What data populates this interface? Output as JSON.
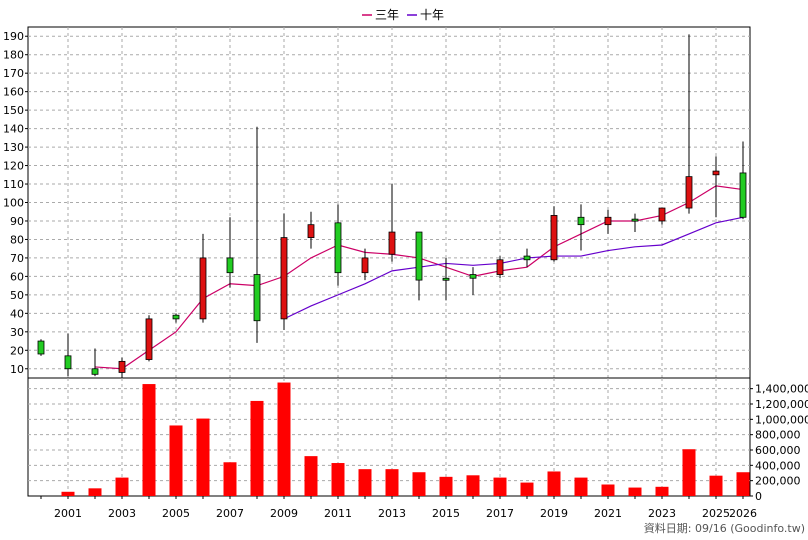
{
  "legend": [
    {
      "label": "三年",
      "color": "#cc0066"
    },
    {
      "label": "十年",
      "color": "#6600cc"
    }
  ],
  "credit": "資料日期: 09/16  (Goodinfo.tw)",
  "chart_data": {
    "type": "candlestick",
    "title": "",
    "x_tick_labels": [
      "2001",
      "2003",
      "2005",
      "2007",
      "2009",
      "2011",
      "2013",
      "2015",
      "2017",
      "2019",
      "2021",
      "2023",
      "2025",
      "2026"
    ],
    "price_axis": {
      "ylim": [
        5,
        195
      ],
      "ticks": [
        10,
        20,
        30,
        40,
        50,
        60,
        70,
        80,
        90,
        100,
        110,
        120,
        130,
        140,
        150,
        160,
        170,
        180,
        190
      ]
    },
    "volume_axis": {
      "ylim": [
        0,
        1500000
      ],
      "ticks": [
        0,
        200000,
        400000,
        600000,
        800000,
        1000000,
        1200000,
        1400000
      ],
      "tick_labels": [
        "0",
        "200,000",
        "400,000",
        "600,000",
        "800,000",
        "1,000,000",
        "1,200,000",
        "1,400,000"
      ]
    },
    "up_color": "#22cc22",
    "down_color": "#dd1111",
    "candles": [
      {
        "year": 2000,
        "open": 18,
        "close": 25,
        "high": 26,
        "low": 17
      },
      {
        "year": 2001,
        "open": 10,
        "close": 17,
        "high": 29,
        "low": 6
      },
      {
        "year": 2002,
        "open": 7,
        "close": 10,
        "high": 21,
        "low": 6
      },
      {
        "year": 2003,
        "open": 14,
        "close": 8,
        "high": 16,
        "low": 5
      },
      {
        "year": 2004,
        "open": 37,
        "close": 15,
        "high": 39,
        "low": 14
      },
      {
        "year": 2005,
        "open": 37,
        "close": 39,
        "high": 40,
        "low": 35
      },
      {
        "year": 2006,
        "open": 70,
        "close": 37,
        "high": 83,
        "low": 35
      },
      {
        "year": 2007,
        "open": 62,
        "close": 70,
        "high": 92,
        "low": 54
      },
      {
        "year": 2008,
        "open": 36,
        "close": 61,
        "high": 141,
        "low": 24
      },
      {
        "year": 2009,
        "open": 81,
        "close": 37,
        "high": 94,
        "low": 31
      },
      {
        "year": 2010,
        "open": 88,
        "close": 81,
        "high": 95,
        "low": 75
      },
      {
        "year": 2011,
        "open": 62,
        "close": 89,
        "high": 99,
        "low": 55
      },
      {
        "year": 2012,
        "open": 70,
        "close": 62,
        "high": 75,
        "low": 58
      },
      {
        "year": 2013,
        "open": 84,
        "close": 72,
        "high": 110,
        "low": 68
      },
      {
        "year": 2014,
        "open": 58,
        "close": 84,
        "high": 84,
        "low": 47
      },
      {
        "year": 2015,
        "open": 58,
        "close": 59,
        "high": 70,
        "low": 47
      },
      {
        "year": 2016,
        "open": 59,
        "close": 61,
        "high": 65,
        "low": 50
      },
      {
        "year": 2017,
        "open": 69,
        "close": 61,
        "high": 71,
        "low": 59
      },
      {
        "year": 2018,
        "open": 69,
        "close": 71,
        "high": 75,
        "low": 65
      },
      {
        "year": 2019,
        "open": 93,
        "close": 69,
        "high": 98,
        "low": 68
      },
      {
        "year": 2020,
        "open": 88,
        "close": 92,
        "high": 99,
        "low": 74
      },
      {
        "year": 2021,
        "open": 92,
        "close": 88,
        "high": 96,
        "low": 83
      },
      {
        "year": 2022,
        "open": 90,
        "close": 91,
        "high": 94,
        "low": 84
      },
      {
        "year": 2023,
        "open": 97,
        "close": 90,
        "high": 97,
        "low": 88
      },
      {
        "year": 2024,
        "open": 114,
        "close": 97,
        "high": 191,
        "low": 94
      },
      {
        "year": 2025,
        "open": 117,
        "close": 115,
        "high": 125,
        "low": 92
      },
      {
        "year": 2026,
        "open": 92,
        "close": 116,
        "high": 133,
        "low": 91
      }
    ],
    "series": [
      {
        "name": "三年",
        "color": "#cc0066",
        "points": [
          [
            2002,
            11
          ],
          [
            2003,
            10
          ],
          [
            2004,
            20
          ],
          [
            2005,
            30
          ],
          [
            2006,
            48
          ],
          [
            2007,
            56
          ],
          [
            2008,
            55
          ],
          [
            2009,
            60
          ],
          [
            2010,
            70
          ],
          [
            2011,
            77
          ],
          [
            2012,
            73
          ],
          [
            2013,
            72
          ],
          [
            2014,
            70
          ],
          [
            2015,
            65
          ],
          [
            2016,
            60
          ],
          [
            2017,
            63
          ],
          [
            2018,
            65
          ],
          [
            2019,
            76
          ],
          [
            2020,
            83
          ],
          [
            2021,
            90
          ],
          [
            2022,
            90
          ],
          [
            2023,
            93
          ],
          [
            2024,
            100
          ],
          [
            2025,
            109
          ],
          [
            2026,
            107
          ]
        ]
      },
      {
        "name": "十年",
        "color": "#6600cc",
        "points": [
          [
            2009,
            37
          ],
          [
            2010,
            44
          ],
          [
            2011,
            50
          ],
          [
            2012,
            56
          ],
          [
            2013,
            63
          ],
          [
            2014,
            65
          ],
          [
            2015,
            67
          ],
          [
            2016,
            66
          ],
          [
            2017,
            67
          ],
          [
            2018,
            70
          ],
          [
            2019,
            71
          ],
          [
            2020,
            71
          ],
          [
            2021,
            74
          ],
          [
            2022,
            76
          ],
          [
            2023,
            77
          ],
          [
            2024,
            83
          ],
          [
            2025,
            89
          ],
          [
            2026,
            92
          ]
        ]
      }
    ],
    "volume": {
      "color": "#ff0000",
      "bars": [
        {
          "year": 2000,
          "value": 0
        },
        {
          "year": 2001,
          "value": 55000
        },
        {
          "year": 2002,
          "value": 100000
        },
        {
          "year": 2003,
          "value": 240000
        },
        {
          "year": 2004,
          "value": 1460000
        },
        {
          "year": 2005,
          "value": 920000
        },
        {
          "year": 2006,
          "value": 1010000
        },
        {
          "year": 2007,
          "value": 440000
        },
        {
          "year": 2008,
          "value": 1240000
        },
        {
          "year": 2009,
          "value": 1480000
        },
        {
          "year": 2010,
          "value": 520000
        },
        {
          "year": 2011,
          "value": 430000
        },
        {
          "year": 2012,
          "value": 350000
        },
        {
          "year": 2013,
          "value": 350000
        },
        {
          "year": 2014,
          "value": 310000
        },
        {
          "year": 2015,
          "value": 250000
        },
        {
          "year": 2016,
          "value": 270000
        },
        {
          "year": 2017,
          "value": 240000
        },
        {
          "year": 2018,
          "value": 175000
        },
        {
          "year": 2019,
          "value": 320000
        },
        {
          "year": 2020,
          "value": 240000
        },
        {
          "year": 2021,
          "value": 150000
        },
        {
          "year": 2022,
          "value": 110000
        },
        {
          "year": 2023,
          "value": 120000
        },
        {
          "year": 2024,
          "value": 610000
        },
        {
          "year": 2025,
          "value": 265000
        },
        {
          "year": 2026,
          "value": 310000
        }
      ]
    },
    "grid": true,
    "legend_position": "top-center"
  }
}
